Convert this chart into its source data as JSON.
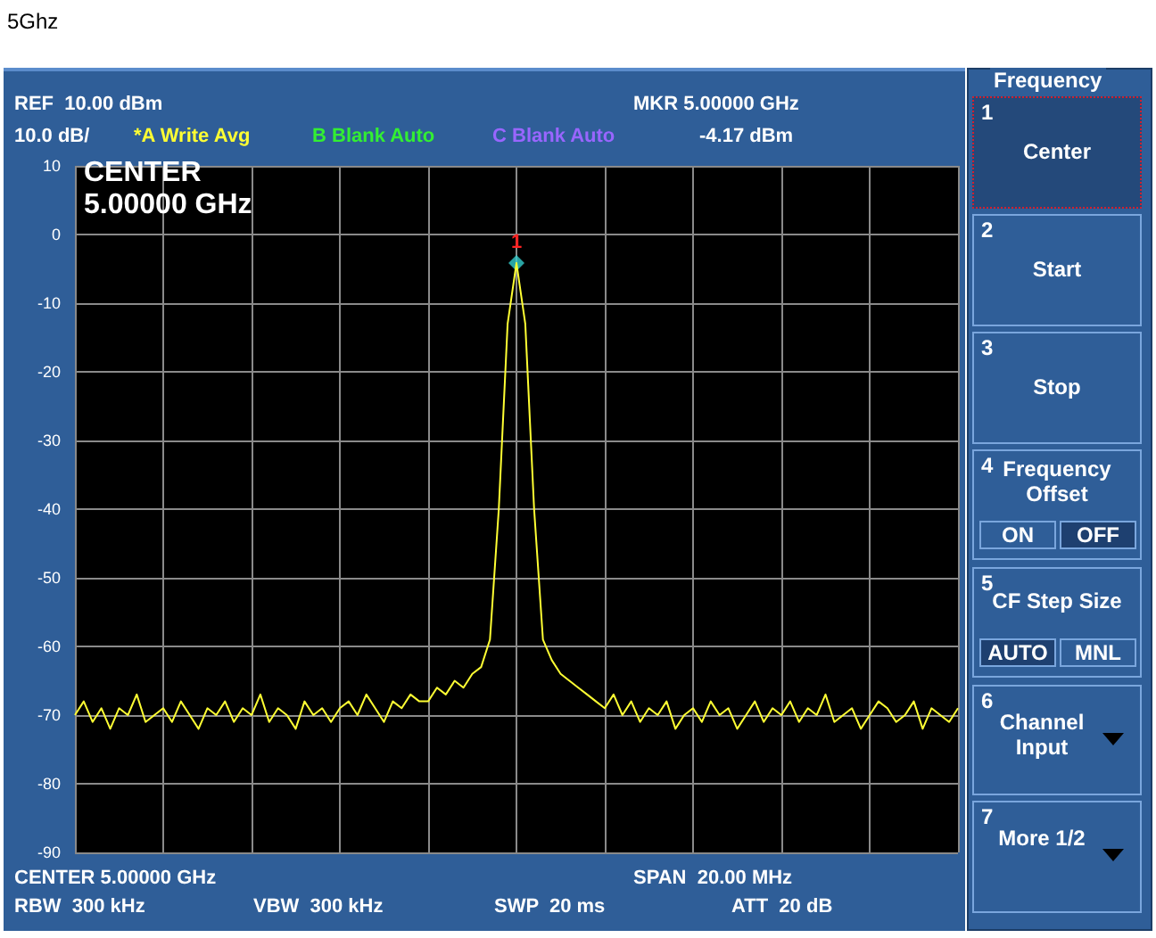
{
  "chart_data": {
    "type": "line",
    "title": "5Ghz",
    "categories": [
      null,
      null,
      null,
      null,
      null,
      null,
      null,
      null,
      null,
      null,
      null,
      null,
      null,
      null,
      null,
      null,
      null,
      null,
      null,
      null,
      null,
      null,
      null,
      null,
      null,
      null,
      null,
      null,
      null,
      null,
      null,
      null,
      null,
      null,
      null,
      null,
      null,
      null,
      null,
      null,
      null,
      null,
      null,
      null,
      null,
      null,
      null,
      null,
      null,
      null,
      null,
      null,
      null,
      null,
      null,
      null,
      null,
      null,
      null,
      null,
      null,
      null,
      null,
      null,
      null,
      null,
      null,
      null,
      null,
      null,
      null,
      null,
      null,
      null,
      null,
      null,
      null,
      null,
      null,
      null,
      null,
      null,
      null,
      null,
      null,
      null,
      null,
      null,
      null,
      null,
      null,
      null,
      null,
      null,
      null,
      null,
      null,
      null,
      null,
      null,
      null
    ],
    "series": [
      {
        "color": "#ffff33",
        "marker": "none",
        "values": [
          -70,
          -68,
          -71,
          -69,
          -72,
          -69,
          -70,
          -67,
          -71,
          -70,
          -69,
          -71,
          -68,
          -70,
          -72,
          -69,
          -70,
          -68,
          -71,
          -69,
          -70,
          -67,
          -71,
          -69,
          -70,
          -72,
          -68,
          -70,
          -69,
          -71,
          -69,
          -68,
          -70,
          -67,
          -69,
          -71,
          -68,
          -69,
          -67,
          -68,
          -68,
          -66,
          -67,
          -65,
          -66,
          -64,
          -63,
          -59,
          -40,
          -13,
          -4.17,
          -13,
          -40,
          -59,
          -62,
          -64,
          -65,
          -66,
          -67,
          -68,
          -69,
          -67,
          -70,
          -68,
          -71,
          -69,
          -70,
          -68,
          -72,
          -70,
          -69,
          -71,
          -68,
          -70,
          -69,
          -72,
          -70,
          -68,
          -71,
          -69,
          -70,
          -68,
          -71,
          -69,
          -70,
          -67,
          -71,
          -70,
          -69,
          -72,
          -70,
          -68,
          -69,
          -71,
          -70,
          -68,
          -72,
          -69,
          -70,
          -71,
          -69
        ]
      },
      {
        "type": "scatter",
        "color": "#33cccc",
        "marker": "diamond",
        "values": [
          null,
          null,
          null,
          null,
          null,
          null,
          null,
          null,
          null,
          null,
          null,
          null,
          null,
          null,
          null,
          null,
          null,
          null,
          null,
          null,
          null,
          null,
          null,
          null,
          null,
          null,
          null,
          null,
          null,
          null,
          null,
          null,
          null,
          null,
          null,
          null,
          null,
          null,
          null,
          null,
          null,
          null,
          null,
          null,
          null,
          null,
          null,
          null,
          null,
          null,
          -4.17,
          null,
          null,
          null,
          null,
          null,
          null,
          null,
          null,
          null,
          null,
          null,
          null,
          null,
          null,
          null,
          null,
          null,
          null,
          null,
          null,
          null,
          null,
          null,
          null,
          null,
          null,
          null,
          null,
          null,
          null,
          null,
          null,
          null,
          null,
          null,
          null,
          null,
          null,
          null,
          null,
          null,
          null,
          null,
          null,
          null,
          null,
          null,
          null,
          null,
          null
        ]
      }
    ],
    "ylim": [
      -90,
      10
    ],
    "yticks": [
      -90,
      -80,
      -70,
      -60,
      -50,
      -40,
      -30,
      -20,
      -10,
      0,
      10
    ],
    "grid": true,
    "tick_labels": "y",
    "annotations": [
      "REF  10.00 dBm",
      "10.0 dB/",
      "*A Write Avg",
      "B Blank Auto",
      "C Blank Auto",
      "MKR 5.00000 GHz",
      "-4.17 dBm",
      "CENTER\n5.00000 GHz",
      "CENTER 5.00000 GHz",
      "SPAN  20.00 MHz",
      "RBW  300 kHz",
      "VBW  300 kHz",
      "SWP  20 ms",
      "ATT  20 dB",
      {
        "text": "1",
        "y": -4.17
      },
      "Frequency",
      "1",
      "Center",
      "2",
      "Start",
      "3",
      "Stop",
      "4",
      "Frequency Offset",
      "ON",
      "OFF",
      "5",
      "CF Step Size",
      "AUTO",
      "MNL",
      "6",
      "Channel Input",
      "7",
      "More 1/2"
    ]
  }
}
